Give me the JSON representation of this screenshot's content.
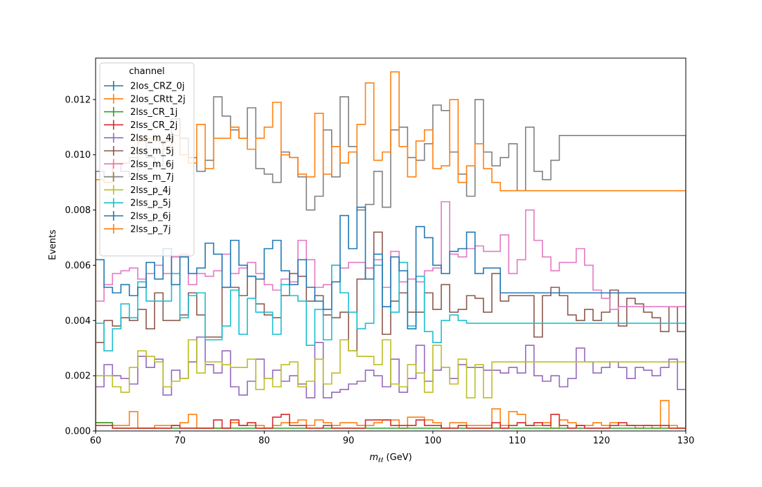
{
  "chart_data": {
    "type": "histogram-step",
    "xlabel": "m_ℓℓ (GeV)",
    "xlabel_parts": {
      "symbol": "m",
      "subscript": "ℓℓ",
      "unit": " (GeV)"
    },
    "ylabel": "Events",
    "xlim": [
      60,
      130
    ],
    "ylim": [
      0,
      0.0135
    ],
    "xticks": [
      60,
      70,
      80,
      90,
      100,
      110,
      120,
      130
    ],
    "xtick_labels": [
      "60",
      "70",
      "80",
      "90",
      "100",
      "110",
      "120",
      "130"
    ],
    "yticks": [
      0,
      0.002,
      0.004,
      0.006,
      0.008,
      0.01,
      0.012
    ],
    "ytick_labels": [
      "0.000",
      "0.002",
      "0.004",
      "0.006",
      "0.008",
      "0.010",
      "0.012"
    ],
    "bin_width": 1,
    "bin_start": 60,
    "legend": {
      "title": "channel",
      "placement": "upper-left"
    },
    "series": [
      {
        "name": "2los_CRZ_0j",
        "color": "#1f77b4",
        "values": []
      },
      {
        "name": "2los_CRtt_2j",
        "color": "#ff7f0e",
        "values": [
          0.0003,
          0.0003,
          0.0002,
          0.0002,
          0.0007,
          0.0001,
          0.0001,
          0.0002,
          0.0002,
          0.0002,
          0.0003,
          0.0006,
          0.0001,
          0.0001,
          0.0001,
          0.0001,
          0.0003,
          0.0002,
          0.0002,
          0.0002,
          0.0001,
          0.0002,
          0.0003,
          0.0003,
          0.0004,
          0.0002,
          0.0004,
          0.0003,
          0.0002,
          0.0003,
          0.0003,
          0.0002,
          0.0002,
          0.0003,
          0.0004,
          0.0004,
          0.0001,
          0.0005,
          0.0005,
          0.0004,
          0.0003,
          0.0001,
          0.0003,
          0.0003,
          0.0002,
          0.0002,
          0.0002,
          0.0008,
          0.0002,
          0.0007,
          0.0006,
          0.0002,
          0.0002,
          0.0003,
          0.0001,
          0.0004,
          0.0003,
          0.0002,
          0.0002,
          0.0003,
          0.0002,
          0.0003,
          0.0002,
          0.0002,
          0.0001,
          0.0002,
          0.0001,
          0.0011,
          0.0002,
          0.0001
        ]
      },
      {
        "name": "2lss_CR_1j",
        "color": "#2ca02c",
        "values": [
          0.0003,
          0.0003,
          0.0001,
          0.0001,
          0.0001,
          0.0001,
          0.0001,
          0.0001,
          0.0001,
          0.0001,
          0.0001,
          0.0001,
          0.0001,
          0.0001,
          0.0001,
          0.0001,
          0.0001,
          0.0001,
          0.0001,
          0.0001,
          0.0001,
          0.0001,
          0.0001,
          0.0001,
          0.0001,
          0.0001,
          0.0001,
          0.0001,
          0.0001,
          0.0001,
          0.0001,
          0.0001,
          0.0001,
          0.0001,
          0.0001,
          0.0001,
          0.0001,
          0.0001,
          0.0001,
          0.0001,
          0.0001,
          0.0001,
          0.0001,
          0.0001,
          0.0001,
          0.0001,
          0.0001,
          0.0001,
          0.0001,
          0.0001,
          0.0001,
          0.0001,
          0.0001,
          0.0001,
          0.0001,
          0.0001,
          0.0001,
          0.0001,
          0.0001,
          0.0001,
          0.0001,
          0.0001,
          0.0001,
          0.0001,
          0.0001,
          0.0001,
          0.0001,
          0.0001,
          0.0001,
          0.0001
        ]
      },
      {
        "name": "2lss_CR_2j",
        "color": "#d62728",
        "values": [
          0.0002,
          0.0002,
          0.0001,
          0.0001,
          0.0001,
          0.0001,
          0.0001,
          0.0001,
          0.0001,
          0.0002,
          0.0001,
          0.0001,
          0.0001,
          0.0001,
          0.0004,
          0.0001,
          0.0004,
          0.0002,
          0.0003,
          0.0001,
          0.0001,
          0.0005,
          0.0006,
          0.0002,
          0.0002,
          0.0001,
          0.0001,
          0.0002,
          0.0001,
          0.0001,
          0.0001,
          0.0001,
          0.0004,
          0.0004,
          0.0004,
          0.0002,
          0.0002,
          0.0002,
          0.0004,
          0.0002,
          0.0002,
          0.0001,
          0.0001,
          0.0002,
          0.0001,
          0.0001,
          0.0001,
          0.0003,
          0.0001,
          0.0002,
          0.0003,
          0.0002,
          0.0003,
          0.0002,
          0.0006,
          0.0002,
          0.0001,
          0.0002,
          0.0001,
          0.0001,
          0.0001,
          0.0002,
          0.0003,
          0.0002,
          0.0002,
          0.0002,
          0.0002,
          0.0002,
          0.0001,
          0.0001
        ]
      },
      {
        "name": "2lss_m_4j",
        "color": "#9467bd",
        "values": [
          0.0016,
          0.0024,
          0.002,
          0.0019,
          0.0017,
          0.0027,
          0.0023,
          0.0026,
          0.0013,
          0.0022,
          0.0019,
          0.0025,
          0.0034,
          0.0024,
          0.0021,
          0.0029,
          0.0016,
          0.0013,
          0.0018,
          0.0026,
          0.0019,
          0.0022,
          0.0018,
          0.002,
          0.0017,
          0.0012,
          0.0032,
          0.0012,
          0.0014,
          0.0015,
          0.0017,
          0.0018,
          0.0022,
          0.002,
          0.0016,
          0.0026,
          0.0014,
          0.0019,
          0.0031,
          0.0018,
          0.0022,
          0.0023,
          0.0019,
          0.0024,
          0.0023,
          0.0023,
          0.0022,
          0.0022,
          0.0021,
          0.0023,
          0.0021,
          0.0031,
          0.002,
          0.0018,
          0.002,
          0.0016,
          0.0019,
          0.003,
          0.0025,
          0.0021,
          0.0023,
          0.0025,
          0.0023,
          0.0019,
          0.0023,
          0.0022,
          0.002,
          0.0023,
          0.0026,
          0.0015
        ]
      },
      {
        "name": "2lss_m_5j",
        "color": "#8c564b",
        "values": [
          0.0032,
          0.004,
          0.0038,
          0.0041,
          0.004,
          0.0044,
          0.0037,
          0.005,
          0.004,
          0.004,
          0.0042,
          0.005,
          0.0042,
          0.0034,
          0.0034,
          0.0052,
          0.0052,
          0.0049,
          0.0056,
          0.0046,
          0.0042,
          0.0041,
          0.0049,
          0.0057,
          0.0056,
          0.0047,
          0.0049,
          0.0042,
          0.0041,
          0.0043,
          0.0029,
          0.0055,
          0.0059,
          0.0072,
          0.0035,
          0.0047,
          0.005,
          0.0043,
          0.0043,
          0.005,
          0.0044,
          0.0053,
          0.0043,
          0.0044,
          0.0049,
          0.0048,
          0.0043,
          0.0057,
          0.0047,
          0.0049,
          0.0049,
          0.0049,
          0.0034,
          0.0049,
          0.0052,
          0.0049,
          0.0042,
          0.004,
          0.0044,
          0.004,
          0.0043,
          0.0051,
          0.0038,
          0.0048,
          0.0046,
          0.0043,
          0.0041,
          0.0036,
          0.0045,
          0.0036
        ]
      },
      {
        "name": "2lss_m_6j",
        "color": "#e377c2",
        "values": [
          0.0047,
          0.0053,
          0.0057,
          0.0058,
          0.0059,
          0.0055,
          0.0057,
          0.006,
          0.0057,
          0.0063,
          0.0064,
          0.0053,
          0.0057,
          0.0056,
          0.0058,
          0.0064,
          0.0057,
          0.0059,
          0.0061,
          0.0057,
          0.0053,
          0.0051,
          0.0055,
          0.0054,
          0.0069,
          0.0062,
          0.0052,
          0.0053,
          0.006,
          0.0059,
          0.0061,
          0.0061,
          0.0059,
          0.0062,
          0.0052,
          0.0065,
          0.0054,
          0.0055,
          0.0054,
          0.0058,
          0.0059,
          0.0083,
          0.0064,
          0.0063,
          0.0066,
          0.0067,
          0.0065,
          0.0065,
          0.0071,
          0.0057,
          0.0062,
          0.008,
          0.0069,
          0.0063,
          0.0058,
          0.0061,
          0.0061,
          0.0066,
          0.006,
          0.0051,
          0.0048,
          0.0044,
          0.0045,
          0.0045,
          0.0045,
          0.0045,
          0.0045,
          0.0045,
          0.0045,
          0.0045
        ]
      },
      {
        "name": "2lss_m_7j",
        "color": "#7f7f7f",
        "values": [
          0.0094,
          0.0092,
          0.0097,
          0.0094,
          0.0092,
          0.0105,
          0.0099,
          0.0096,
          0.0105,
          0.0113,
          0.0106,
          0.0099,
          0.0094,
          0.0098,
          0.0121,
          0.0114,
          0.0109,
          0.0106,
          0.0117,
          0.0095,
          0.0093,
          0.009,
          0.0101,
          0.0099,
          0.0092,
          0.008,
          0.0085,
          0.0109,
          0.0092,
          0.0121,
          0.0103,
          0.008,
          0.0082,
          0.0094,
          0.0081,
          0.0109,
          0.011,
          0.0099,
          0.0098,
          0.0104,
          0.0118,
          0.0116,
          0.0101,
          0.0093,
          0.0085,
          0.012,
          0.0101,
          0.0096,
          0.0099,
          0.0104,
          0.0087,
          0.011,
          0.0094,
          0.0091,
          0.0098,
          0.0107,
          0.0107,
          0.0107,
          0.0107,
          0.0107,
          0.0107,
          0.0107,
          0.0107,
          0.0107,
          0.0107,
          0.0107,
          0.0107,
          0.0107,
          0.0107,
          0.0107
        ]
      },
      {
        "name": "2lss_p_4j",
        "color": "#bcbd22",
        "values": [
          0.002,
          0.002,
          0.0016,
          0.0014,
          0.0023,
          0.0029,
          0.0027,
          0.0025,
          0.0016,
          0.0018,
          0.0019,
          0.0033,
          0.0021,
          0.0025,
          0.0025,
          0.0024,
          0.0023,
          0.0023,
          0.0026,
          0.0015,
          0.0019,
          0.0016,
          0.0024,
          0.0025,
          0.0016,
          0.0018,
          0.0026,
          0.0017,
          0.0021,
          0.0033,
          0.0029,
          0.0027,
          0.0027,
          0.0024,
          0.0033,
          0.0017,
          0.0016,
          0.0024,
          0.0021,
          0.0014,
          0.0031,
          0.0023,
          0.0017,
          0.0026,
          0.0012,
          0.0024,
          0.0012,
          0.0025,
          0.0025,
          0.0025,
          0.0025,
          0.0025,
          0.0025,
          0.0025,
          0.0025,
          0.0025,
          0.0025,
          0.0025,
          0.0025,
          0.0025,
          0.0025,
          0.0025,
          0.0025,
          0.0025,
          0.0025,
          0.0025,
          0.0025,
          0.0025,
          0.0025,
          0.0025
        ]
      },
      {
        "name": "2lss_p_5j",
        "color": "#17becf",
        "values": [
          0.0039,
          0.0029,
          0.0037,
          0.0046,
          0.0041,
          0.0054,
          0.0047,
          0.0047,
          0.0047,
          0.0057,
          0.0041,
          0.0049,
          0.005,
          0.0033,
          0.0033,
          0.0038,
          0.0051,
          0.0035,
          0.0048,
          0.0043,
          0.0043,
          0.0035,
          0.0053,
          0.0049,
          0.0047,
          0.0031,
          0.0044,
          0.0033,
          0.006,
          0.005,
          0.0043,
          0.0037,
          0.0039,
          0.006,
          0.0045,
          0.0043,
          0.0061,
          0.0038,
          0.0056,
          0.0036,
          0.0032,
          0.004,
          0.0042,
          0.004,
          0.0039,
          0.0039,
          0.0039,
          0.0039,
          0.0039,
          0.0039,
          0.0039,
          0.0039,
          0.0039,
          0.0039,
          0.0039,
          0.0039,
          0.0039,
          0.0039,
          0.0039,
          0.0039,
          0.0039,
          0.0039,
          0.0039,
          0.0039,
          0.0039,
          0.0039,
          0.0039,
          0.0039,
          0.0039,
          0.0039
        ]
      },
      {
        "name": "2lss_p_6j",
        "color": "#1f77b4",
        "values": [
          0.0062,
          0.0052,
          0.005,
          0.0053,
          0.0049,
          0.0052,
          0.0061,
          0.0055,
          0.0066,
          0.0053,
          0.0063,
          0.0057,
          0.0059,
          0.0068,
          0.0064,
          0.0052,
          0.0069,
          0.006,
          0.0056,
          0.0055,
          0.0066,
          0.0069,
          0.0058,
          0.0053,
          0.0062,
          0.0052,
          0.0047,
          0.0044,
          0.0054,
          0.0078,
          0.0066,
          0.0081,
          0.0055,
          0.0064,
          0.0045,
          0.0063,
          0.0058,
          0.0037,
          0.0074,
          0.007,
          0.006,
          0.0057,
          0.0065,
          0.0066,
          0.0072,
          0.0057,
          0.0059,
          0.0059,
          0.005,
          0.005,
          0.005,
          0.005,
          0.005,
          0.005,
          0.005,
          0.005,
          0.005,
          0.005,
          0.005,
          0.005,
          0.005,
          0.005,
          0.005,
          0.005,
          0.005,
          0.005,
          0.005,
          0.005,
          0.005,
          0.005
        ]
      },
      {
        "name": "2lss_p_7j",
        "color": "#ff7f0e",
        "values": [
          0.0091,
          0.009,
          0.0097,
          0.0097,
          0.0099,
          0.0105,
          0.0106,
          0.0105,
          0.0102,
          0.0107,
          0.01,
          0.0097,
          0.0111,
          0.0095,
          0.0106,
          0.0106,
          0.011,
          0.0106,
          0.0102,
          0.0106,
          0.011,
          0.0119,
          0.01,
          0.0099,
          0.0093,
          0.0092,
          0.0115,
          0.0093,
          0.0103,
          0.0097,
          0.0101,
          0.0111,
          0.0126,
          0.0098,
          0.0101,
          0.013,
          0.0103,
          0.0092,
          0.0105,
          0.0109,
          0.0095,
          0.0096,
          0.012,
          0.009,
          0.0096,
          0.0104,
          0.0095,
          0.009,
          0.0087,
          0.0087,
          0.0087,
          0.0087,
          0.0087,
          0.0087,
          0.0087,
          0.0087,
          0.0087,
          0.0087,
          0.0087,
          0.0087,
          0.0087,
          0.0087,
          0.0087,
          0.0087,
          0.0087,
          0.0087,
          0.0087,
          0.0087,
          0.0087,
          0.0087
        ]
      }
    ]
  }
}
